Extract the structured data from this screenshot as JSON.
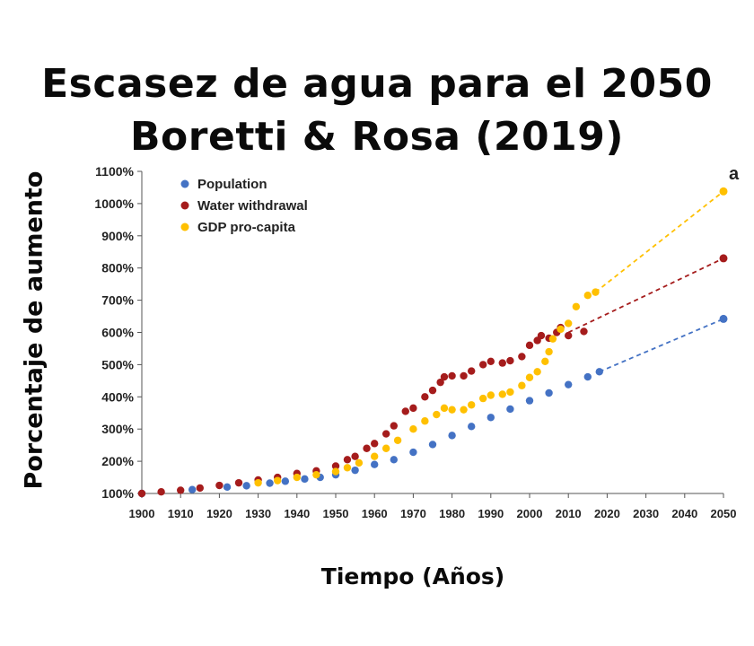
{
  "header": {
    "title_line1": "Escasez de agua para el 2050",
    "title_line2": "Boretti & Rosa (2019)"
  },
  "chart_data": {
    "type": "scatter",
    "panel_label": "a",
    "ylabel": "Porcentaje de aumento",
    "xlabel": "Tiempo (Años)",
    "xlim": [
      1900,
      2050
    ],
    "ylim": [
      100,
      1100
    ],
    "x_ticks": [
      "1900",
      "1910",
      "1920",
      "1930",
      "1940",
      "1950",
      "1960",
      "1970",
      "1980",
      "1990",
      "2000",
      "2010",
      "2020",
      "2030",
      "2040",
      "2050"
    ],
    "y_ticks": [
      "100%",
      "200%",
      "300%",
      "400%",
      "500%",
      "600%",
      "700%",
      "800%",
      "900%",
      "1000%",
      "1100%"
    ],
    "grid": false,
    "legend_position": "top-left",
    "colors": {
      "population": "#4472c4",
      "water": "#a51c1c",
      "gdp": "#ffc000"
    },
    "series": [
      {
        "name": "Population",
        "key": "population",
        "points": [
          [
            1900,
            100
          ],
          [
            1913,
            112
          ],
          [
            1922,
            120
          ],
          [
            1927,
            124
          ],
          [
            1933,
            132
          ],
          [
            1937,
            138
          ],
          [
            1942,
            145
          ],
          [
            1946,
            150
          ],
          [
            1950,
            158
          ],
          [
            1955,
            172
          ],
          [
            1960,
            190
          ],
          [
            1965,
            205
          ],
          [
            1970,
            228
          ],
          [
            1975,
            252
          ],
          [
            1980,
            280
          ],
          [
            1985,
            308
          ],
          [
            1990,
            336
          ],
          [
            1995,
            362
          ],
          [
            2000,
            388
          ],
          [
            2005,
            412
          ],
          [
            2010,
            438
          ],
          [
            2015,
            462
          ],
          [
            2018,
            478
          ]
        ],
        "projection": [
          [
            2018,
            478
          ],
          [
            2050,
            642
          ]
        ]
      },
      {
        "name": "Water withdrawal",
        "key": "water",
        "points": [
          [
            1900,
            100
          ],
          [
            1905,
            105
          ],
          [
            1910,
            110
          ],
          [
            1915,
            117
          ],
          [
            1920,
            125
          ],
          [
            1925,
            133
          ],
          [
            1930,
            142
          ],
          [
            1935,
            150
          ],
          [
            1940,
            162
          ],
          [
            1945,
            170
          ],
          [
            1950,
            185
          ],
          [
            1953,
            205
          ],
          [
            1955,
            215
          ],
          [
            1958,
            240
          ],
          [
            1960,
            255
          ],
          [
            1963,
            285
          ],
          [
            1965,
            310
          ],
          [
            1968,
            355
          ],
          [
            1970,
            365
          ],
          [
            1973,
            400
          ],
          [
            1975,
            420
          ],
          [
            1977,
            445
          ],
          [
            1978,
            462
          ],
          [
            1980,
            465
          ],
          [
            1983,
            465
          ],
          [
            1985,
            480
          ],
          [
            1988,
            500
          ],
          [
            1990,
            510
          ],
          [
            1993,
            505
          ],
          [
            1995,
            512
          ],
          [
            1998,
            525
          ],
          [
            2000,
            560
          ],
          [
            2002,
            575
          ],
          [
            2003,
            590
          ],
          [
            2005,
            582
          ],
          [
            2007,
            600
          ],
          [
            2008,
            615
          ],
          [
            2010,
            590
          ],
          [
            2014,
            603
          ]
        ],
        "projection": [
          [
            2010,
            600
          ],
          [
            2050,
            830
          ]
        ]
      },
      {
        "name": "GDP pro-capita",
        "key": "gdp",
        "points": [
          [
            1930,
            133
          ],
          [
            1935,
            140
          ],
          [
            1940,
            150
          ],
          [
            1945,
            158
          ],
          [
            1950,
            168
          ],
          [
            1953,
            180
          ],
          [
            1956,
            195
          ],
          [
            1960,
            215
          ],
          [
            1963,
            240
          ],
          [
            1966,
            265
          ],
          [
            1970,
            300
          ],
          [
            1973,
            325
          ],
          [
            1976,
            345
          ],
          [
            1978,
            365
          ],
          [
            1980,
            360
          ],
          [
            1983,
            360
          ],
          [
            1985,
            375
          ],
          [
            1988,
            395
          ],
          [
            1990,
            405
          ],
          [
            1993,
            408
          ],
          [
            1995,
            415
          ],
          [
            1998,
            435
          ],
          [
            2000,
            460
          ],
          [
            2002,
            478
          ],
          [
            2004,
            510
          ],
          [
            2005,
            540
          ],
          [
            2006,
            580
          ],
          [
            2008,
            610
          ],
          [
            2010,
            628
          ],
          [
            2012,
            680
          ],
          [
            2015,
            715
          ],
          [
            2017,
            725
          ]
        ],
        "projection": [
          [
            2017,
            725
          ],
          [
            2050,
            1038
          ]
        ]
      }
    ]
  }
}
